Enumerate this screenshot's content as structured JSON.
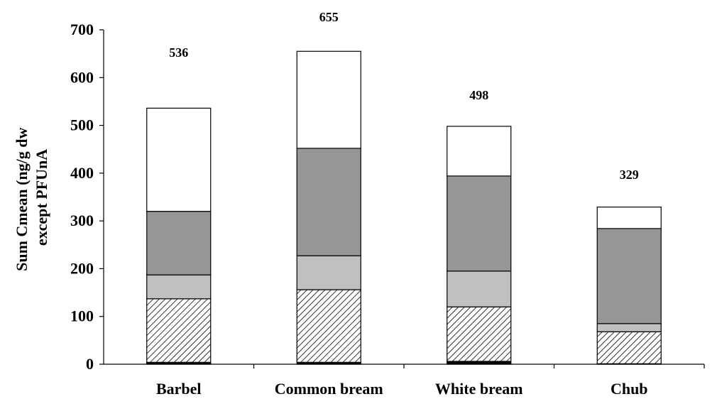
{
  "chart_data": {
    "type": "bar",
    "stacked": true,
    "categories": [
      "Barbel",
      "Common bream",
      "White bream",
      "Chub"
    ],
    "totals": [
      "536",
      "655",
      "498",
      "329"
    ],
    "series": [
      {
        "values": [
          4,
          4,
          6,
          1
        ],
        "fill": "solid",
        "color": "#000000"
      },
      {
        "values": [
          133,
          152,
          114,
          67
        ],
        "fill": "hatch",
        "color": "#000000"
      },
      {
        "values": [
          50,
          71,
          75,
          17
        ],
        "fill": "solid",
        "color": "#c0c0c0"
      },
      {
        "values": [
          133,
          225,
          199,
          199
        ],
        "fill": "solid",
        "color": "#969696"
      },
      {
        "values": [
          216,
          203,
          104,
          45
        ],
        "fill": "solid",
        "color": "#ffffff"
      }
    ],
    "ylabel": [
      "Sum Cmean (ng/g dw",
      "except PFUnA"
    ],
    "yticks": [
      "0",
      "100",
      "200",
      "300",
      "400",
      "500",
      "600",
      "700"
    ],
    "ylim": [
      0,
      700
    ],
    "grid": false,
    "legend": "none"
  }
}
